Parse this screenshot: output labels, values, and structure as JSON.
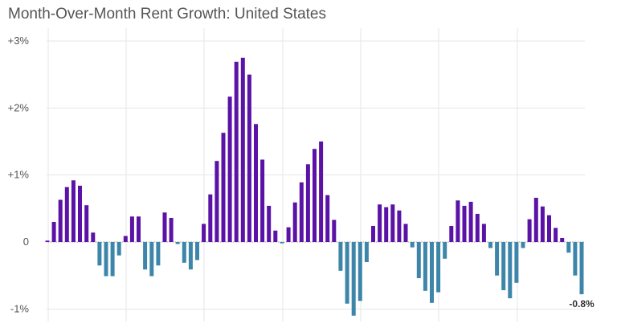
{
  "chart_data": {
    "type": "bar",
    "title": "Month-Over-Month Rent Growth: United States",
    "xlabel": "",
    "ylabel": "",
    "ylim": [
      -1.15,
      3.0
    ],
    "y_ticks": [
      {
        "value": 3,
        "label": "+3%"
      },
      {
        "value": 2,
        "label": "+2%"
      },
      {
        "value": 1,
        "label": "+1%"
      },
      {
        "value": 0,
        "label": "0"
      },
      {
        "value": -1,
        "label": "-1%"
      }
    ],
    "grid": true,
    "legend": "none",
    "colors": {
      "positive": "#5b12a6",
      "negative": "#3d86aa",
      "grid": "#e6e6e6",
      "baseline": "#9a9a9a",
      "tick_text": "#555555",
      "annotation_text": "#333333"
    },
    "values": [
      0.02,
      0.3,
      0.63,
      0.82,
      0.92,
      0.84,
      0.55,
      0.14,
      -0.35,
      -0.51,
      -0.51,
      -0.2,
      0.09,
      0.38,
      0.38,
      -0.41,
      -0.51,
      -0.35,
      0.44,
      0.36,
      -0.03,
      -0.31,
      -0.41,
      -0.27,
      0.27,
      0.71,
      1.21,
      1.63,
      2.17,
      2.69,
      2.75,
      2.5,
      1.76,
      1.23,
      0.54,
      0.17,
      -0.02,
      0.22,
      0.59,
      0.89,
      1.16,
      1.39,
      1.5,
      0.7,
      0.33,
      -0.43,
      -0.92,
      -1.1,
      -0.88,
      -0.3,
      0.24,
      0.56,
      0.52,
      0.56,
      0.47,
      0.27,
      -0.08,
      -0.54,
      -0.73,
      -0.91,
      -0.75,
      -0.25,
      0.24,
      0.62,
      0.54,
      0.6,
      0.42,
      0.27,
      -0.09,
      -0.5,
      -0.72,
      -0.84,
      -0.61,
      -0.09,
      0.34,
      0.66,
      0.53,
      0.4,
      0.21,
      0.06,
      -0.16,
      -0.5,
      -0.78
    ],
    "annotations": [
      {
        "bar_index": 82,
        "text": "-0.8%"
      }
    ]
  }
}
